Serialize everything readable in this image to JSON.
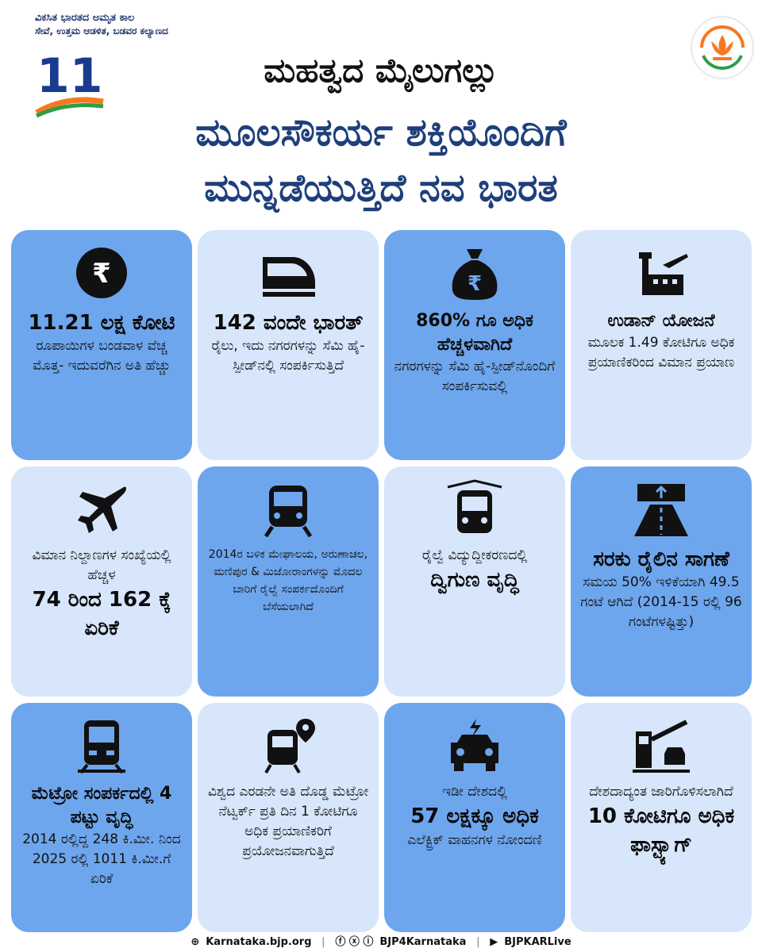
{
  "header": {
    "tagline_1": "ವಿಕಸಿತ ಭಾರತದ ಅಮೃತ ಕಾಲ",
    "tagline_2": "ಸೇವೆ, ಉತ್ತಮ ಆಡಳಿತ, ಬಡವರ ಕಲ್ಯಾಣದ",
    "badge_number": "11",
    "title_1": "ಮಹತ್ವದ ಮೈಲುಗಲ್ಲು",
    "title_2": "ಮೂಲಸೌಕರ್ಯ ಶಕ್ತಿಯೊಂದಿಗೆ",
    "title_3": "ಮುನ್ನಡೆಯುತ್ತಿದೆ ನವ ಭಾರತ"
  },
  "colors": {
    "card_dark": "#6ea6ee",
    "card_light": "#d7e6fb",
    "title_blue": "#1e3f7a",
    "saffron": "#f47920",
    "green": "#2e9e44"
  },
  "cards": [
    {
      "icon": "rupee-coin-icon",
      "title": "11.21 ಲಕ್ಷ ಕೋಟಿ",
      "text": "ರೂಪಾಯಿಗಳ ಬಂಡವಾಳ ವೆಚ್ಚ ಮೊತ್ತ- ಇದುವರೆಗಿನ ಅತಿ ಹೆಚ್ಚು"
    },
    {
      "icon": "bullet-train-icon",
      "title": "142 ವಂದೇ ಭಾರತ್",
      "text": "ರೈಲು, ಇದು ನಗರಗಳನ್ನು ಸೆಮಿ ಹೈ-ಸ್ಪೀಡ್‌ನಲ್ಲಿ ಸಂಪರ್ಕಿಸುತ್ತಿದೆ"
    },
    {
      "icon": "money-bag-icon",
      "title": "860% ಗೂ ಅಧಿಕ ಹೆಚ್ಚಳವಾಗಿದೆ",
      "text": "ನಗರಗಳನ್ನು ಸೆಮಿ ಹೈ-ಸ್ಪೀಡ್‌ನೊಂದಿಗೆ ಸಂಪರ್ಕಿಸುವಲ್ಲಿ"
    },
    {
      "icon": "airport-tower-icon",
      "title": "ಉಡಾನ್ ಯೋಜನೆ",
      "text": "ಮೂಲಕ 1.49 ಕೋಟಿಗೂ ಅಧಿಕ ಪ್ರಯಾಣಿಕರಿಂದ ವಿಮಾನ ಪ್ರಯಾಣ"
    },
    {
      "icon": "airplane-icon",
      "text": "ವಿಮಾನ ನಿಲ್ದಾಣಗಳ ಸಂಖ್ಯೆಯಲ್ಲಿ ಹೆಚ್ಚಳ",
      "big": "74 ರಿಂದ 162 ಕ್ಕೆ ಏರಿಕೆ"
    },
    {
      "icon": "train-front-icon",
      "text": "2014ರ ಬಳಿಕ ಮೇಘಾಲಯ, ಅರುಣಾಚಲ, ಮಣಿಪುರ & ಮಿಜೋರಾಂಗಳನ್ನು ಮೊದಲ ಬಾರಿಗೆ ರೈಲ್ವೆ ಸಂಪರ್ಕದೊಂದಿಗೆ ಬೆಸೆಯಲಾಗಿದೆ"
    },
    {
      "icon": "electric-train-icon",
      "text": "ರೈಲ್ವೆ ವಿದ್ಯುದ್ದೀಕರಣದಲ್ಲಿ",
      "big": "ದ್ವಿಗುಣ ವೃದ್ಧಿ"
    },
    {
      "icon": "freight-road-icon",
      "title": "ಸರಕು ರೈಲಿನ ಸಾಗಣೆ",
      "text": "ಸಮಯ 50% ಇಳಿಕೆಯಾಗಿ 49.5 ಗಂಟೆ ಆಗಿದೆ (2014-15 ರಲ್ಲಿ 96 ಗಂಟೆಗಳಷ್ಟಿತ್ತು)"
    },
    {
      "icon": "metro-train-icon",
      "title": "ಮೆಟ್ರೋ ಸಂಪರ್ಕದಲ್ಲಿ 4 ಪಟ್ಟು ವೃದ್ಧಿ",
      "text": "2014 ರಲ್ಲಿದ್ದ 248 ಕಿ.ಮೀ. ನಿಂದ 2025 ರಲ್ಲಿ 1011 ಕಿ.ಮೀ.ಗೆ ಏರಿಕೆ"
    },
    {
      "icon": "metro-location-icon",
      "text": "ವಿಶ್ವದ ಎರಡನೇ ಅತಿ ದೊಡ್ಡ ಮೆಟ್ರೋ ನೆಟ್ವರ್ಕ್ ಪ್ರತಿ ದಿನ 1 ಕೋಟಿಗೂ ಅಧಿಕ ಪ್ರಯಾಣಿಕರಿಗೆ ಪ್ರಯೋಜನವಾಗುತ್ತಿದೆ"
    },
    {
      "icon": "electric-car-icon",
      "text": "ಇಡೀ ದೇಶದಲ್ಲಿ",
      "big": "57 ಲಕ್ಷಕ್ಕೂ ಅಧಿಕ",
      "text2": "ಎಲೆಕ್ಟ್ರಿಕ್ ವಾಹನಗಳ ನೋಂದಣಿ"
    },
    {
      "icon": "toll-gate-icon",
      "text": "ದೇಶದಾದ್ಯಂತ ಜಾರಿಗೊಳಿಸಲಾಗಿದೆ",
      "big": "10 ಕೋಟಿಗೂ ಅಧಿಕ ಫಾಸ್ಟ್ಯಾಗ್"
    }
  ],
  "footer": {
    "website": "Karnataka.bjp.org",
    "social": "BJP4Karnataka",
    "youtube": "BJPKARLive"
  }
}
